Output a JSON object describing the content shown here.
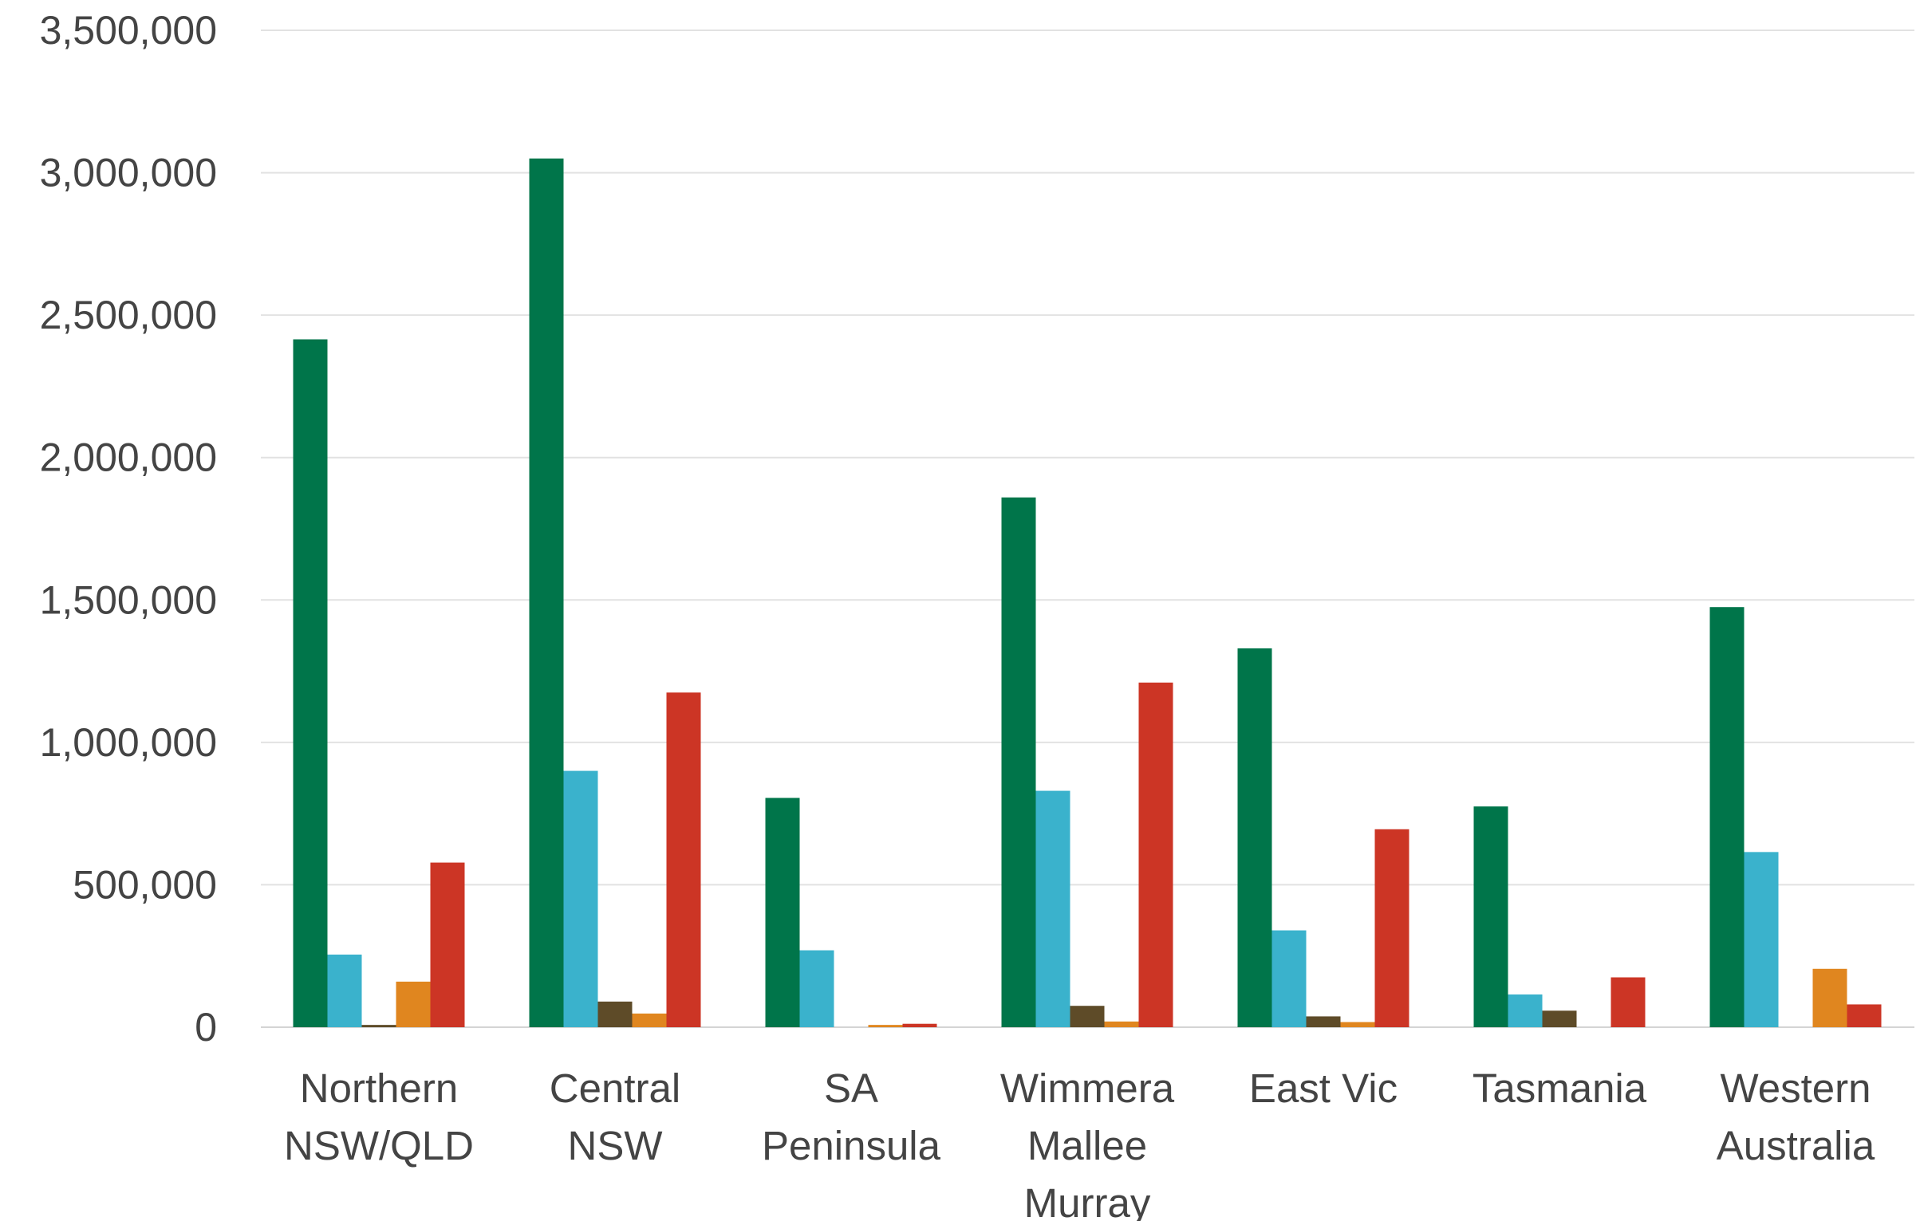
{
  "chart_data": {
    "type": "bar",
    "categories": [
      [
        "Northern",
        "NSW/QLD"
      ],
      [
        "Central",
        "NSW"
      ],
      [
        "SA",
        "Peninsula"
      ],
      [
        "Wimmera",
        "Mallee",
        "Murray"
      ],
      [
        "East Vic"
      ],
      [
        "Tasmania"
      ],
      [
        "Western",
        "Australia"
      ]
    ],
    "series": [
      {
        "color": "#00754a",
        "values": [
          2415000,
          3050000,
          805000,
          1860000,
          1330000,
          775000,
          1475000
        ]
      },
      {
        "color": "#3ab2cc",
        "values": [
          255000,
          900000,
          270000,
          830000,
          340000,
          115000,
          615000
        ]
      },
      {
        "color": "#5e4b28",
        "values": [
          8000,
          90000,
          0,
          75000,
          38000,
          58000,
          0
        ]
      },
      {
        "color": "#e0861f",
        "values": [
          160000,
          48000,
          8000,
          20000,
          18000,
          0,
          205000
        ]
      },
      {
        "color": "#cc3525",
        "values": [
          578000,
          1175000,
          12000,
          1210000,
          695000,
          175000,
          80000
        ]
      }
    ],
    "ylim": [
      0,
      3500000
    ],
    "yticks": [
      0,
      500000,
      1000000,
      1500000,
      2000000,
      2500000,
      3000000,
      3500000
    ],
    "ytick_labels": [
      "0",
      "500,000",
      "1,000,000",
      "1,500,000",
      "2,000,000",
      "2,500,000",
      "3,000,000",
      "3,500,000"
    ],
    "grid": true,
    "legend": "none",
    "title": "",
    "xlabel": "",
    "ylabel": ""
  }
}
